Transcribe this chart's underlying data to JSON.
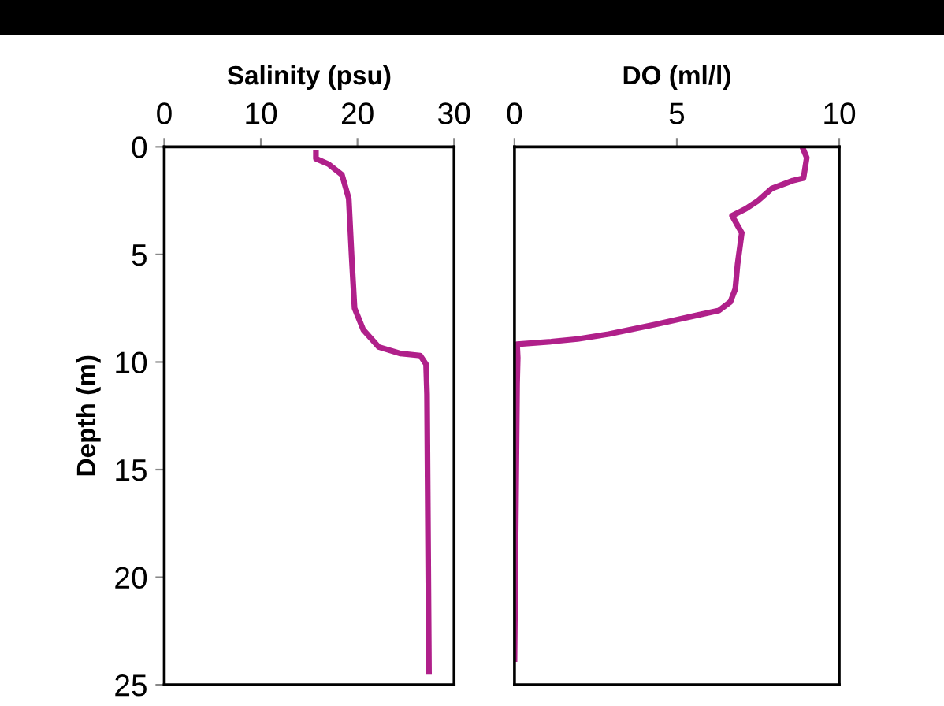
{
  "chart_data": [
    {
      "type": "line",
      "xlabel": "Salinity (psu)",
      "ylabel": "Depth (m)",
      "xlim": [
        0,
        30
      ],
      "xticks": [
        0,
        10,
        20,
        30
      ],
      "ylim": [
        25,
        0
      ],
      "yticks": [
        0,
        5,
        10,
        15,
        20,
        25
      ],
      "grid": false,
      "series": [
        {
          "color": "#b0208a",
          "x": [
            15.7,
            15.7,
            17.0,
            18.4,
            19.1,
            19.4,
            19.7,
            20.6,
            22.2,
            24.4,
            26.5,
            27.1,
            27.2,
            27.4
          ],
          "values": [
            0.3,
            0.55,
            0.8,
            1.3,
            2.4,
            5.1,
            7.5,
            8.5,
            9.3,
            9.6,
            9.7,
            10.1,
            11.5,
            24.4
          ]
        }
      ]
    },
    {
      "type": "line",
      "xlabel": "DO (ml/l)",
      "xlim": [
        0,
        10
      ],
      "xticks": [
        0,
        5,
        10
      ],
      "ylim": [
        25,
        0
      ],
      "yticks": [
        0,
        5,
        10,
        15,
        20,
        25
      ],
      "tick_labels": "x",
      "grid": false,
      "series": [
        {
          "color": "#b0208a",
          "x": [
            8.9,
            9.0,
            8.9,
            8.57,
            7.93,
            7.5,
            7.12,
            6.7,
            7.0,
            6.87,
            6.8,
            6.65,
            6.3,
            5.7,
            4.37,
            2.9,
            1.94,
            1.13,
            0.08,
            0.1,
            0.08,
            0.0
          ],
          "values": [
            0.14,
            0.5,
            1.45,
            1.57,
            1.93,
            2.5,
            2.88,
            3.2,
            4.0,
            5.45,
            6.6,
            7.2,
            7.6,
            7.8,
            8.24,
            8.7,
            8.93,
            9.05,
            9.17,
            9.8,
            11.0,
            23.8
          ]
        }
      ]
    }
  ]
}
